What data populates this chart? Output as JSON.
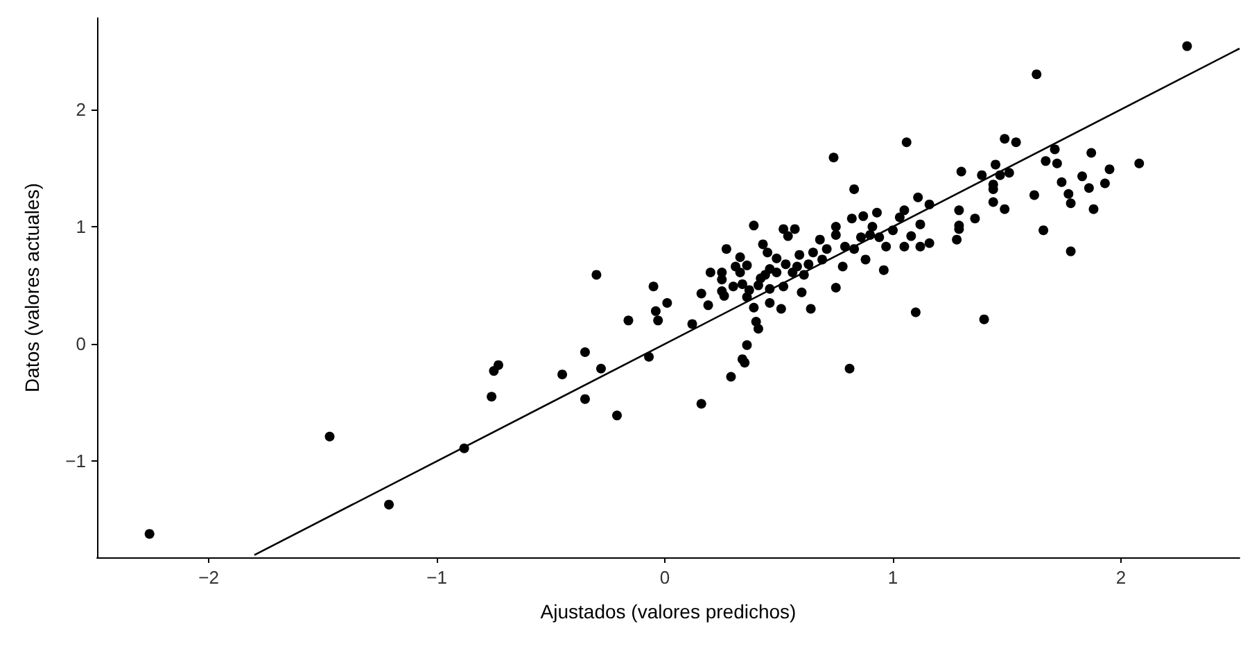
{
  "chart_data": {
    "type": "scatter",
    "xlabel": "Ajustados (valores predichos)",
    "ylabel": "Datos (valores actuales)",
    "xlim": [
      -2.49,
      2.52
    ],
    "ylim": [
      -1.82,
      2.78
    ],
    "xticks": [
      {
        "value": -2,
        "label": "−2"
      },
      {
        "value": -1,
        "label": "−1"
      },
      0,
      1,
      2
    ],
    "yticks": [
      {
        "value": -1,
        "label": "−1"
      },
      0,
      1,
      2
    ],
    "grid": false,
    "series": [
      {
        "color": "#000000",
        "marker": "circle",
        "x": [
          -2.26,
          -1.47,
          -1.21,
          -0.88,
          -0.76,
          -0.75,
          -0.73,
          -0.45,
          -0.35,
          -0.35,
          -0.28,
          -0.3,
          -0.21,
          -0.16,
          -0.07,
          -0.05,
          -0.04,
          -0.03,
          0.01,
          0.12,
          0.16,
          0.16,
          0.19,
          0.2,
          0.25,
          0.25,
          0.25,
          0.26,
          0.27,
          0.29,
          0.3,
          0.33,
          0.33,
          0.34,
          0.34,
          0.35,
          0.36,
          0.36,
          0.36,
          0.39,
          0.39,
          0.4,
          0.41,
          0.41,
          0.43,
          0.44,
          0.45,
          0.46,
          0.46,
          0.46,
          0.49,
          0.49,
          0.51,
          0.52,
          0.52,
          0.53,
          0.54,
          0.57,
          0.56,
          0.58,
          0.59,
          0.6,
          0.61,
          0.63,
          0.64,
          0.65,
          0.68,
          0.69,
          0.71,
          0.74,
          0.75,
          0.75,
          0.75,
          0.78,
          0.79,
          0.81,
          0.82,
          0.83,
          0.83,
          0.86,
          0.87,
          0.88,
          0.9,
          0.91,
          0.93,
          0.94,
          0.96,
          0.97,
          1.0,
          1.03,
          1.05,
          1.05,
          1.06,
          1.08,
          1.1,
          1.11,
          1.12,
          1.12,
          1.16,
          1.16,
          1.4,
          1.63,
          2.29,
          1.3,
          1.39,
          1.45,
          1.47,
          1.49,
          1.54,
          1.51,
          1.44,
          1.44,
          1.44,
          1.49,
          1.62,
          1.66,
          1.67,
          1.71,
          1.72,
          1.74,
          1.77,
          1.78,
          1.78,
          1.83,
          1.86,
          1.87,
          1.88,
          1.93,
          1.95,
          2.08,
          1.29,
          1.29,
          1.29,
          1.28,
          1.36,
          0.42,
          0.37,
          0.31
        ],
        "values": [
          -1.62,
          -0.79,
          -1.37,
          -0.89,
          -0.45,
          -0.23,
          -0.18,
          -0.26,
          -0.07,
          -0.47,
          -0.21,
          0.59,
          -0.61,
          0.2,
          -0.11,
          0.49,
          0.28,
          0.2,
          0.35,
          0.17,
          -0.51,
          0.43,
          0.33,
          0.61,
          0.61,
          0.55,
          0.45,
          0.41,
          0.81,
          -0.28,
          0.49,
          0.74,
          0.61,
          0.51,
          -0.13,
          -0.16,
          0.4,
          0.67,
          -0.01,
          1.01,
          0.31,
          0.19,
          0.13,
          0.5,
          0.85,
          0.59,
          0.78,
          0.47,
          0.35,
          0.64,
          0.61,
          0.73,
          0.3,
          0.98,
          0.49,
          0.68,
          0.92,
          0.98,
          0.61,
          0.66,
          0.76,
          0.44,
          0.59,
          0.68,
          0.3,
          0.78,
          0.89,
          0.72,
          0.81,
          1.59,
          0.93,
          1.0,
          0.48,
          0.66,
          0.83,
          -0.21,
          1.07,
          1.32,
          0.81,
          0.91,
          1.09,
          0.72,
          0.93,
          1.0,
          1.12,
          0.91,
          0.63,
          0.83,
          0.97,
          1.08,
          0.83,
          1.14,
          1.72,
          0.92,
          0.27,
          1.25,
          1.02,
          0.83,
          1.19,
          0.86,
          0.21,
          2.3,
          2.54,
          1.47,
          1.44,
          1.53,
          1.44,
          1.75,
          1.72,
          1.46,
          1.36,
          1.32,
          1.21,
          1.15,
          1.27,
          0.97,
          1.56,
          1.66,
          1.54,
          1.38,
          1.28,
          1.2,
          0.79,
          1.43,
          1.33,
          1.63,
          1.15,
          1.37,
          1.49,
          1.54,
          1.14,
          1.01,
          0.98,
          0.89,
          1.07,
          0.56,
          0.46,
          0.66
        ]
      },
      {
        "type": "line",
        "marker": "none",
        "color": "#000000",
        "x": [
          -1.8,
          2.52
        ],
        "values": [
          -1.8,
          2.52
        ]
      }
    ]
  }
}
